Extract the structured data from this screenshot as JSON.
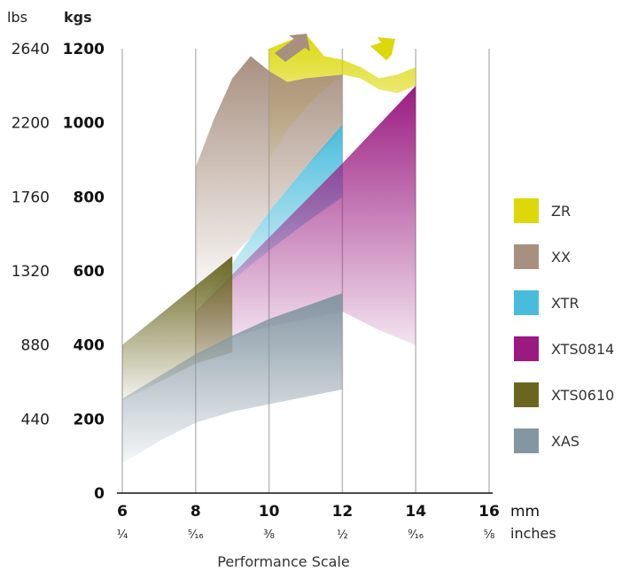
{
  "chart_data": {
    "type": "area",
    "xlabel": "Performance Scale",
    "x_unit_primary": "mm",
    "x_unit_secondary": "inches",
    "x_ticks": [
      6,
      8,
      10,
      12,
      14,
      16
    ],
    "x_tick_labels_inches": [
      "¼",
      "⁵⁄₁₆",
      "⅜",
      "½",
      "⁹⁄₁₆",
      "⅝"
    ],
    "xlim": [
      6,
      16
    ],
    "y_unit_left": "lbs",
    "y_unit_right": "kgs",
    "y_ticks_kgs": [
      0,
      200,
      400,
      600,
      800,
      1000,
      1200
    ],
    "y_ticks_lbs": [
      "",
      "440",
      "880",
      "1320",
      "1760",
      "2200",
      "2640"
    ],
    "ylim": [
      0,
      1200
    ],
    "grid": "vertical",
    "legend_position": "right",
    "series": [
      {
        "name": "ZR",
        "color": "#dcd80a",
        "x": [
          10,
          10.5,
          11,
          11.5,
          12,
          12.5,
          13,
          13.5,
          14
        ],
        "upper": [
          1200,
          1220,
          1240,
          1180,
          1170,
          1150,
          1120,
          1130,
          1150
        ],
        "lower": [
          900,
          980,
          1040,
          1090,
          1130,
          1120,
          1090,
          1080,
          1100
        ]
      },
      {
        "name": "XX",
        "color": "#a89080",
        "x": [
          8,
          8.5,
          9,
          9.5,
          10,
          10.5,
          11,
          11.5,
          12
        ],
        "upper": [
          880,
          1010,
          1120,
          1180,
          1140,
          1110,
          1120,
          1125,
          1130
        ],
        "lower": [
          560,
          600,
          640,
          690,
          760,
          820,
          880,
          930,
          980
        ]
      },
      {
        "name": "XTR",
        "color": "#48bcdc",
        "x": [
          8,
          9,
          10,
          11,
          12
        ],
        "upper": [
          490,
          620,
          760,
          880,
          995
        ],
        "lower": [
          490,
          575,
          655,
          730,
          800
        ]
      },
      {
        "name": "XTS0814",
        "color": "#9a1a80",
        "x": [
          8,
          9,
          10,
          11,
          12,
          13,
          14
        ],
        "upper": [
          490,
          590,
          690,
          790,
          890,
          995,
          1100
        ],
        "lower": [
          370,
          420,
          450,
          470,
          490,
          440,
          400
        ]
      },
      {
        "name": "XTS0610",
        "color": "#6a6620",
        "x": [
          6,
          7,
          8,
          9
        ],
        "upper": [
          400,
          480,
          560,
          640
        ],
        "lower": [
          250,
          300,
          350,
          380
        ]
      },
      {
        "name": "XAS",
        "color": "#8496a2",
        "x": [
          6,
          7,
          8,
          9,
          10,
          11,
          12
        ],
        "upper": [
          255,
          315,
          375,
          425,
          470,
          505,
          540
        ],
        "lower": [
          80,
          140,
          190,
          220,
          240,
          260,
          280
        ]
      }
    ]
  }
}
